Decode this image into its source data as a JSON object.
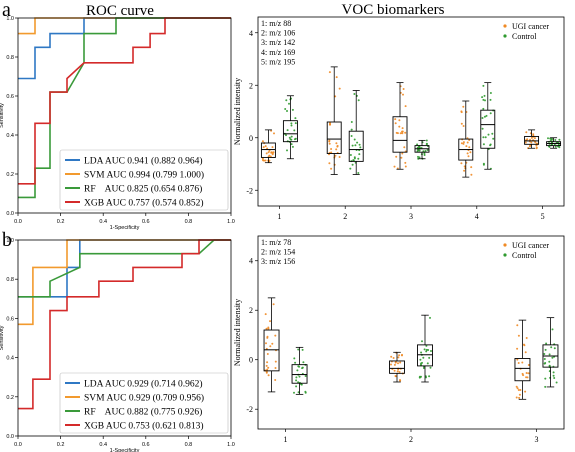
{
  "figure": {
    "panel_labels": [
      "a",
      "b"
    ],
    "col_titles": {
      "left": "ROC curve",
      "right": "VOC biomarkers"
    }
  },
  "chart_data": [
    {
      "id": "roc_a",
      "type": "line",
      "xlabel": "1-Specificity",
      "ylabel": "Sensitivity",
      "xlim": [
        0,
        1
      ],
      "ylim": [
        0,
        1
      ],
      "ticks": [
        "0.0",
        "0.2",
        "0.4",
        "0.6",
        "0.8",
        "1.0"
      ],
      "grid": false,
      "legend_position": "lower-right",
      "series": [
        {
          "name": "LDA AUC 0.941 (0.882 0.964)",
          "color": "#2f78c4",
          "points": [
            [
              0,
              0.69
            ],
            [
              0.08,
              0.69
            ],
            [
              0.08,
              0.85
            ],
            [
              0.15,
              0.85
            ],
            [
              0.15,
              0.92
            ],
            [
              0.31,
              0.92
            ],
            [
              0.31,
              1.0
            ],
            [
              1,
              1.0
            ]
          ]
        },
        {
          "name": "SVM AUC 0.994 (0.799 1.000)",
          "color": "#f29a2e",
          "points": [
            [
              0,
              0.92
            ],
            [
              0.08,
              0.92
            ],
            [
              0.08,
              1.0
            ],
            [
              1,
              1.0
            ]
          ]
        },
        {
          "name": "RF    AUC 0.825 (0.654 0.876)",
          "color": "#3a9a3a",
          "points": [
            [
              0,
              0.08
            ],
            [
              0.08,
              0.08
            ],
            [
              0.08,
              0.23
            ],
            [
              0.15,
              0.23
            ],
            [
              0.15,
              0.62
            ],
            [
              0.23,
              0.62
            ],
            [
              0.31,
              0.77
            ],
            [
              0.31,
              0.92
            ],
            [
              0.46,
              0.92
            ],
            [
              0.46,
              1.0
            ],
            [
              1,
              1.0
            ]
          ]
        },
        {
          "name": "XGB AUC 0.757 (0.574 0.852)",
          "color": "#d42a2a",
          "points": [
            [
              0,
              0.15
            ],
            [
              0.08,
              0.15
            ],
            [
              0.08,
              0.46
            ],
            [
              0.15,
              0.46
            ],
            [
              0.15,
              0.62
            ],
            [
              0.23,
              0.62
            ],
            [
              0.23,
              0.69
            ],
            [
              0.31,
              0.77
            ],
            [
              0.46,
              0.77
            ],
            [
              0.54,
              0.77
            ],
            [
              0.54,
              0.85
            ],
            [
              0.62,
              0.85
            ],
            [
              0.62,
              0.92
            ],
            [
              0.69,
              0.92
            ],
            [
              0.69,
              1.0
            ],
            [
              1,
              1.0
            ]
          ]
        }
      ]
    },
    {
      "id": "roc_b",
      "type": "line",
      "xlabel": "1-Specificity",
      "ylabel": "Sensitivity",
      "xlim": [
        0,
        1
      ],
      "ylim": [
        0,
        1
      ],
      "ticks": [
        "0.0",
        "0.2",
        "0.4",
        "0.6",
        "0.8",
        "1.0"
      ],
      "grid": false,
      "legend_position": "lower-right",
      "series": [
        {
          "name": "LDA AUC 0.929 (0.714 0.962)",
          "color": "#2f78c4",
          "points": [
            [
              0,
              0.71
            ],
            [
              0.23,
              0.71
            ],
            [
              0.23,
              0.86
            ],
            [
              0.29,
              0.86
            ],
            [
              0.29,
              1.0
            ],
            [
              1,
              1.0
            ]
          ]
        },
        {
          "name": "SVM AUC 0.929 (0.709 0.956)",
          "color": "#f29a2e",
          "points": [
            [
              0,
              0.57
            ],
            [
              0.07,
              0.57
            ],
            [
              0.07,
              0.86
            ],
            [
              0.23,
              0.86
            ],
            [
              0.23,
              1.0
            ],
            [
              1,
              1.0
            ]
          ]
        },
        {
          "name": "RF    AUC 0.882 (0.775 0.926)",
          "color": "#3a9a3a",
          "points": [
            [
              0,
              0.71
            ],
            [
              0.07,
              0.71
            ],
            [
              0.15,
              0.71
            ],
            [
              0.15,
              0.79
            ],
            [
              0.29,
              0.86
            ],
            [
              0.29,
              0.93
            ],
            [
              0.85,
              0.93
            ],
            [
              0.92,
              1.0
            ],
            [
              1,
              1.0
            ]
          ]
        },
        {
          "name": "XGB AUC 0.753 (0.621 0.813)",
          "color": "#d42a2a",
          "points": [
            [
              0,
              0.14
            ],
            [
              0.07,
              0.14
            ],
            [
              0.07,
              0.29
            ],
            [
              0.15,
              0.29
            ],
            [
              0.15,
              0.64
            ],
            [
              0.23,
              0.64
            ],
            [
              0.23,
              0.71
            ],
            [
              0.38,
              0.71
            ],
            [
              0.38,
              0.79
            ],
            [
              0.54,
              0.79
            ],
            [
              0.54,
              0.86
            ],
            [
              0.77,
              0.86
            ],
            [
              0.77,
              0.93
            ],
            [
              0.85,
              0.93
            ],
            [
              0.85,
              1.0
            ],
            [
              1,
              1.0
            ]
          ]
        }
      ]
    },
    {
      "id": "voc_a",
      "type": "box",
      "ylabel": "Normalized intensity",
      "ylim": [
        -2.6,
        4.6
      ],
      "yticks": [
        -2,
        0,
        2,
        4
      ],
      "categories": [
        "1",
        "2",
        "3",
        "4",
        "5"
      ],
      "annotation": [
        "1: m/z 88",
        "2: m/z 106",
        "3: m/z 142",
        "4: m/z 169",
        "5: m/z 195"
      ],
      "legend_position": "upper-right",
      "series": [
        {
          "name": "UGI cancer",
          "color": "#f08a24",
          "boxes": [
            {
              "q1": -0.75,
              "median": -0.45,
              "q3": -0.2,
              "whislo": -0.95,
              "whishi": 0.3
            },
            {
              "q1": -0.6,
              "median": -0.05,
              "q3": 0.6,
              "whislo": -1.4,
              "whishi": 2.7
            },
            {
              "q1": -0.55,
              "median": -0.1,
              "q3": 0.8,
              "whislo": -1.2,
              "whishi": 2.1
            },
            {
              "q1": -0.85,
              "median": -0.45,
              "q3": -0.05,
              "whislo": -1.5,
              "whishi": 1.4
            },
            {
              "q1": -0.25,
              "median": -0.12,
              "q3": 0.05,
              "whislo": -0.4,
              "whishi": 0.3
            }
          ]
        },
        {
          "name": "Control",
          "color": "#2f9a2f",
          "boxes": [
            {
              "q1": -0.15,
              "median": 0.15,
              "q3": 0.65,
              "whislo": -0.8,
              "whishi": 1.6
            },
            {
              "q1": -0.9,
              "median": -0.45,
              "q3": 0.25,
              "whislo": -1.4,
              "whishi": 1.8
            },
            {
              "q1": -0.55,
              "median": -0.42,
              "q3": -0.3,
              "whislo": -0.8,
              "whishi": -0.1
            },
            {
              "q1": -0.4,
              "median": 0.5,
              "q3": 1.05,
              "whislo": -1.2,
              "whishi": 2.1
            },
            {
              "q1": -0.3,
              "median": -0.22,
              "q3": -0.15,
              "whislo": -0.4,
              "whishi": 0.0
            }
          ]
        }
      ]
    },
    {
      "id": "voc_b",
      "type": "box",
      "ylabel": "Normalized intensity",
      "ylim": [
        -2.8,
        5.0
      ],
      "yticks": [
        -2,
        0,
        2,
        4
      ],
      "categories": [
        "1",
        "2",
        "3"
      ],
      "annotation": [
        "1: m/z 78",
        "2: m/z 154",
        "3: m/z 156"
      ],
      "legend_position": "upper-right",
      "series": [
        {
          "name": "UGI cancer",
          "color": "#f08a24",
          "boxes": [
            {
              "q1": -0.45,
              "median": 0.4,
              "q3": 1.2,
              "whislo": -1.3,
              "whishi": 2.5
            },
            {
              "q1": -0.55,
              "median": -0.35,
              "q3": -0.05,
              "whislo": -0.9,
              "whishi": 0.3
            },
            {
              "q1": -0.85,
              "median": -0.35,
              "q3": 0.05,
              "whislo": -1.6,
              "whishi": 1.6
            }
          ]
        },
        {
          "name": "Control",
          "color": "#2f9a2f",
          "boxes": [
            {
              "q1": -0.95,
              "median": -0.6,
              "q3": -0.2,
              "whislo": -1.4,
              "whishi": 0.5
            },
            {
              "q1": -0.25,
              "median": 0.2,
              "q3": 0.6,
              "whislo": -0.9,
              "whishi": 1.8
            },
            {
              "q1": -0.3,
              "median": 0.15,
              "q3": 0.6,
              "whislo": -1.1,
              "whishi": 1.7
            }
          ]
        }
      ]
    }
  ]
}
